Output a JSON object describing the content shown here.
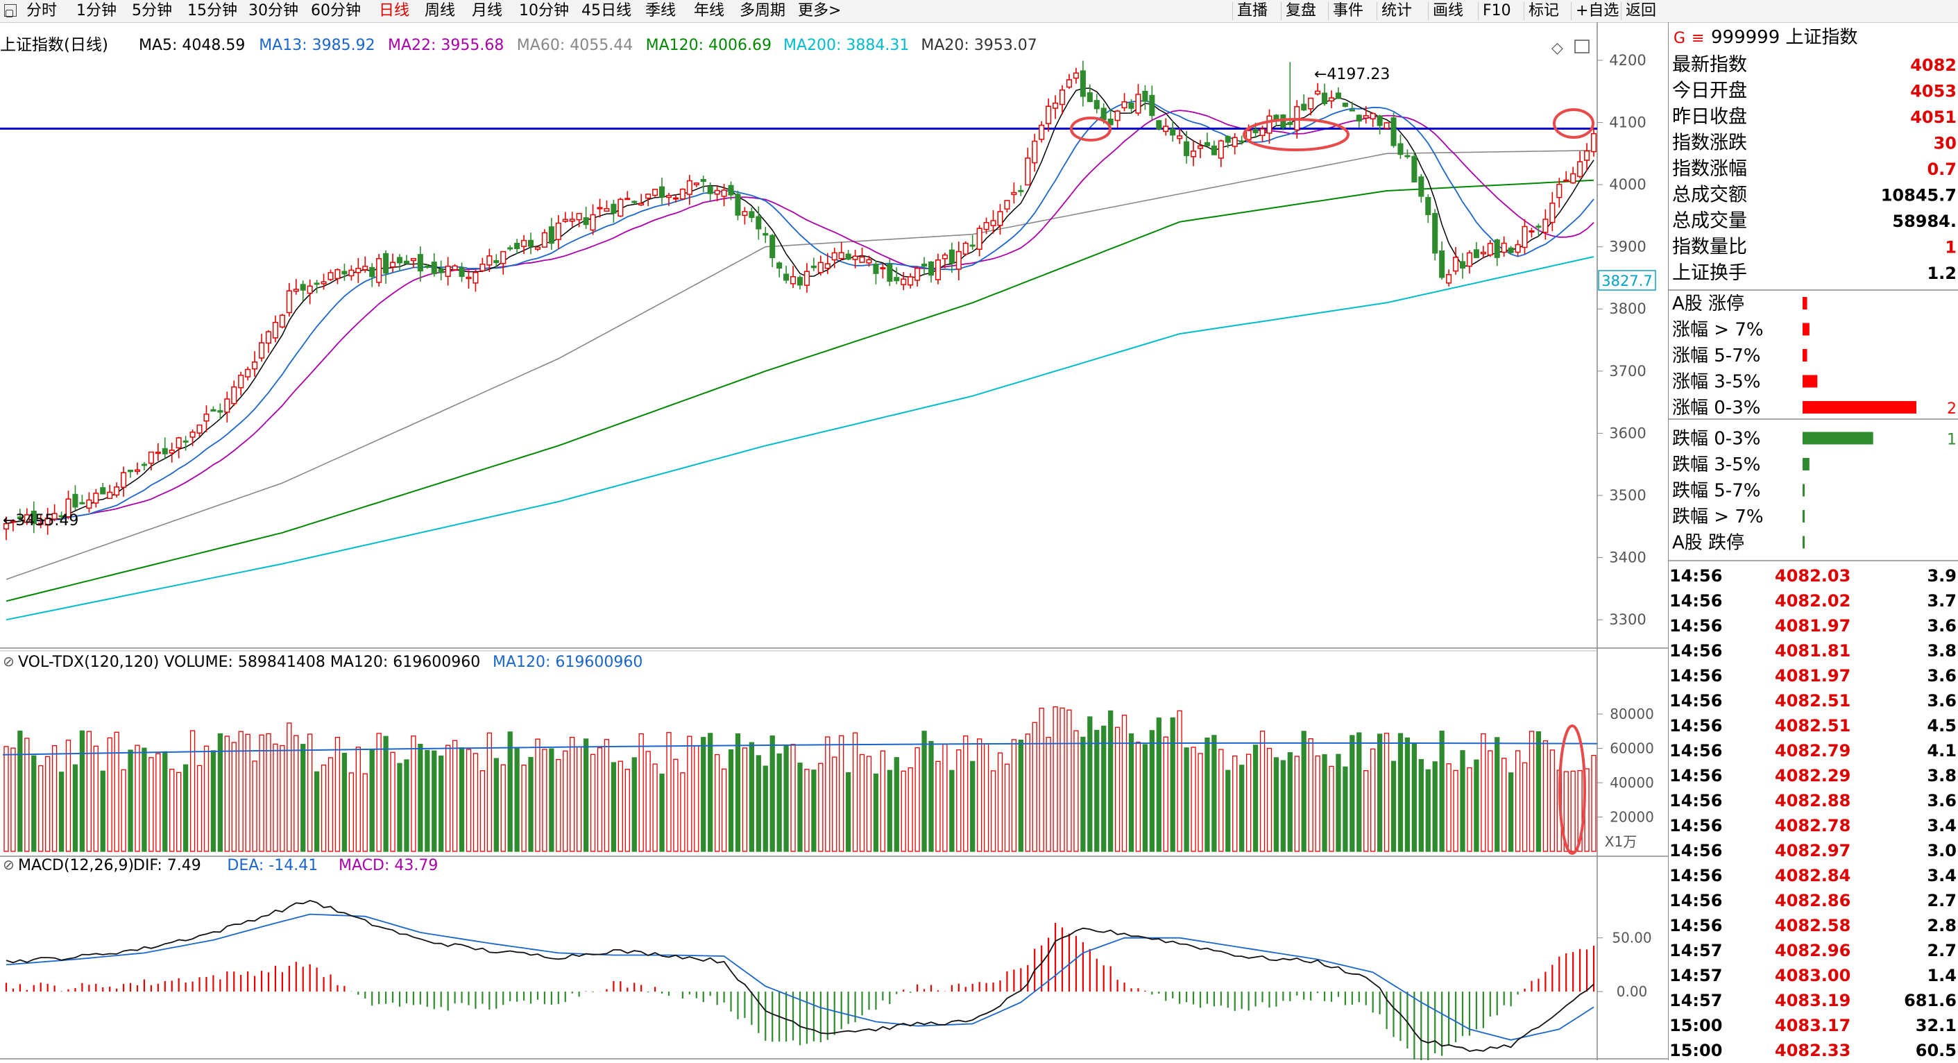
{
  "toolbar": {
    "periods": [
      "分时",
      "1分钟",
      "5分钟",
      "15分钟",
      "30分钟",
      "60分钟",
      "日线",
      "周线",
      "月线",
      "10分钟",
      "45日线",
      "季线",
      "年线",
      "多周期",
      "更多>"
    ],
    "active_period": "日线",
    "right_buttons": [
      "直播",
      "复盘",
      "事件",
      "统计",
      "画线",
      "F10",
      "标记",
      "+自选",
      "返回"
    ]
  },
  "header": {
    "security": "上证指数(日线)",
    "ma_items": [
      {
        "text": "MA5: 4048.59",
        "color": "#000000"
      },
      {
        "text": "MA13: 3985.92",
        "color": "#1a66cc"
      },
      {
        "text": "MA22: 3955.68",
        "color": "#aa00aa"
      },
      {
        "text": "MA60: 4055.44",
        "color": "#888888"
      },
      {
        "text": "MA120: 4006.69",
        "color": "#008800"
      },
      {
        "text": "MA200: 3884.31",
        "color": "#00bbcc"
      },
      {
        "text": "MA20: 3953.07",
        "color": "#333333"
      }
    ],
    "vol_title": "VOL-TDX(120,120) VOLUME: 589841408 MA120: 619600960",
    "vol_ma": "MA120: 619600960",
    "macd_title": "MACD(12,26,9)",
    "macd_items": [
      {
        "text": "DIF: 7.49",
        "color": "#000000"
      },
      {
        "text": "DEA: -14.41",
        "color": "#1a66cc"
      },
      {
        "text": "MACD: 43.79",
        "color": "#aa00aa"
      }
    ]
  },
  "annotations": {
    "high_label": "4197.23",
    "low_label": "3455.49",
    "current_price": "3827.7",
    "vol_unit": "X1万"
  },
  "colors": {
    "up": "#e60000",
    "down": "#2e8b2e",
    "ma5": "#000000",
    "ma13": "#1a66cc",
    "ma22": "#aa00aa",
    "ma60": "#888888",
    "ma120": "#008800",
    "ma200": "#00bbcc",
    "hline": "#0000cc",
    "ellipse": "#e84a4a"
  },
  "quote": {
    "code": "999999",
    "name": "上证指数",
    "fields": [
      {
        "label": "最新指数",
        "value": "4082",
        "color": "#e00000"
      },
      {
        "label": "今日开盘",
        "value": "4053",
        "color": "#e00000"
      },
      {
        "label": "昨日收盘",
        "value": "4051",
        "color": "#e00000"
      },
      {
        "label": "指数涨跌",
        "value": "30",
        "color": "#e00000"
      },
      {
        "label": "指数涨幅",
        "value": "0.7",
        "color": "#e00000"
      },
      {
        "label": "总成交额",
        "value": "10845.7",
        "color": "#000000"
      },
      {
        "label": "总成交量",
        "value": "58984.",
        "color": "#000000"
      },
      {
        "label": "指数量比",
        "value": "1",
        "color": "#e00000"
      },
      {
        "label": "上证换手",
        "value": "1.2",
        "color": "#000000"
      }
    ],
    "dist": [
      {
        "label": "A股 涨停",
        "frac": 0.04,
        "color": "#ff0000",
        "val": ""
      },
      {
        "label": "涨幅 > 7%",
        "frac": 0.06,
        "color": "#ff0000",
        "val": ""
      },
      {
        "label": "涨幅 5-7%",
        "frac": 0.04,
        "color": "#ff0000",
        "val": ""
      },
      {
        "label": "涨幅 3-5%",
        "frac": 0.13,
        "color": "#ff0000",
        "val": ""
      },
      {
        "label": "涨幅 0-3%",
        "frac": 1.0,
        "color": "#ff0000",
        "val": "2"
      },
      {
        "label": "跌幅 0-3%",
        "frac": 0.62,
        "color": "#2e8b2e",
        "val": "1"
      },
      {
        "label": "跌幅 3-5%",
        "frac": 0.06,
        "color": "#2e8b2e",
        "val": ""
      },
      {
        "label": "跌幅 5-7%",
        "frac": 0.015,
        "color": "#2e8b2e",
        "val": ""
      },
      {
        "label": "跌幅 > 7%",
        "frac": 0.015,
        "color": "#2e8b2e",
        "val": ""
      },
      {
        "label": "A股 跌停",
        "frac": 0.015,
        "color": "#2e8b2e",
        "val": ""
      }
    ],
    "ticks": [
      [
        "14:56",
        "4082.03",
        "3.9"
      ],
      [
        "14:56",
        "4082.02",
        "3.7"
      ],
      [
        "14:56",
        "4081.97",
        "3.6"
      ],
      [
        "14:56",
        "4081.81",
        "3.8"
      ],
      [
        "14:56",
        "4081.97",
        "3.6"
      ],
      [
        "14:56",
        "4082.51",
        "3.6"
      ],
      [
        "14:56",
        "4082.51",
        "4.5"
      ],
      [
        "14:56",
        "4082.79",
        "4.1"
      ],
      [
        "14:56",
        "4082.29",
        "3.8"
      ],
      [
        "14:56",
        "4082.88",
        "3.6"
      ],
      [
        "14:56",
        "4082.78",
        "3.4"
      ],
      [
        "14:56",
        "4082.97",
        "3.0"
      ],
      [
        "14:56",
        "4082.84",
        "3.4"
      ],
      [
        "14:56",
        "4082.86",
        "2.7"
      ],
      [
        "14:56",
        "4082.58",
        "2.8"
      ],
      [
        "14:57",
        "4082.96",
        "2.7"
      ],
      [
        "14:57",
        "4083.00",
        "1.4"
      ],
      [
        "14:57",
        "4083.19",
        "681.6"
      ],
      [
        "15:00",
        "4083.17",
        "32.1"
      ],
      [
        "15:00",
        "4082.33",
        "60.5"
      ]
    ]
  },
  "chart_data": [
    {
      "type": "candlestick",
      "title": "上证指数(日线)",
      "ylim": [
        3250,
        4230
      ],
      "yticks": [
        3300,
        3400,
        3500,
        3600,
        3700,
        3800,
        3900,
        4000,
        4100,
        4200
      ],
      "reference_line": 4090,
      "keypoints": [
        [
          0,
          3450
        ],
        [
          12,
          3490
        ],
        [
          22,
          3565
        ],
        [
          32,
          3650
        ],
        [
          42,
          3840
        ],
        [
          52,
          3865
        ],
        [
          58,
          3870
        ],
        [
          66,
          3860
        ],
        [
          76,
          3900
        ],
        [
          87,
          3965
        ],
        [
          93,
          3985
        ],
        [
          98,
          3995
        ],
        [
          104,
          3990
        ],
        [
          110,
          3905
        ],
        [
          114,
          3840
        ],
        [
          122,
          3895
        ],
        [
          130,
          3845
        ],
        [
          138,
          3885
        ],
        [
          147,
          4000
        ],
        [
          152,
          4140
        ],
        [
          155,
          4165
        ],
        [
          160,
          4105
        ],
        [
          164,
          4135
        ],
        [
          168,
          4085
        ],
        [
          172,
          4045
        ],
        [
          177,
          4075
        ],
        [
          182,
          4095
        ],
        [
          186,
          4110
        ],
        [
          190,
          4150
        ],
        [
          194,
          4125
        ],
        [
          199,
          4105
        ],
        [
          204,
          4015
        ],
        [
          208,
          3860
        ],
        [
          212,
          3880
        ],
        [
          218,
          3905
        ],
        [
          222,
          3945
        ],
        [
          226,
          4000
        ],
        [
          229,
          4052
        ],
        [
          230,
          4082
        ]
      ],
      "ma_keypoints": {
        "MA60": [
          [
            0,
            3365
          ],
          [
            40,
            3520
          ],
          [
            80,
            3720
          ],
          [
            110,
            3900
          ],
          [
            140,
            3920
          ],
          [
            170,
            3985
          ],
          [
            200,
            4050
          ],
          [
            230,
            4055
          ]
        ],
        "MA120": [
          [
            0,
            3330
          ],
          [
            40,
            3440
          ],
          [
            80,
            3580
          ],
          [
            110,
            3700
          ],
          [
            140,
            3810
          ],
          [
            170,
            3940
          ],
          [
            200,
            3990
          ],
          [
            230,
            4007
          ]
        ],
        "MA200": [
          [
            0,
            3300
          ],
          [
            40,
            3390
          ],
          [
            80,
            3490
          ],
          [
            110,
            3580
          ],
          [
            140,
            3660
          ],
          [
            170,
            3760
          ],
          [
            200,
            3810
          ],
          [
            230,
            3884
          ]
        ]
      },
      "series_legend": [
        "MA5",
        "MA13",
        "MA22",
        "MA60",
        "MA120",
        "MA200",
        "MA20"
      ]
    },
    {
      "type": "bar",
      "title": "VOL-TDX(120,120)",
      "ylim": [
        0,
        95000
      ],
      "yticks": [
        20000,
        40000,
        60000,
        80000
      ],
      "unit": "X1万",
      "ma120": 61960
    },
    {
      "type": "bar",
      "title": "MACD(12,26,9)",
      "ylim": [
        -60,
        95
      ],
      "yticks": [
        0,
        50
      ],
      "dif_keypoints": [
        [
          0,
          28
        ],
        [
          10,
          32
        ],
        [
          20,
          40
        ],
        [
          30,
          55
        ],
        [
          38,
          72
        ],
        [
          44,
          85
        ],
        [
          52,
          65
        ],
        [
          60,
          48
        ],
        [
          70,
          38
        ],
        [
          80,
          32
        ],
        [
          88,
          38
        ],
        [
          96,
          34
        ],
        [
          104,
          28
        ],
        [
          110,
          -18
        ],
        [
          118,
          -38
        ],
        [
          126,
          -35
        ],
        [
          132,
          -30
        ],
        [
          140,
          -28
        ],
        [
          147,
          0
        ],
        [
          152,
          45
        ],
        [
          156,
          58
        ],
        [
          162,
          54
        ],
        [
          170,
          45
        ],
        [
          180,
          32
        ],
        [
          190,
          28
        ],
        [
          198,
          10
        ],
        [
          205,
          -45
        ],
        [
          212,
          -55
        ],
        [
          218,
          -50
        ],
        [
          225,
          -20
        ],
        [
          230,
          7
        ]
      ],
      "dea_keypoints": [
        [
          0,
          25
        ],
        [
          10,
          30
        ],
        [
          20,
          36
        ],
        [
          30,
          48
        ],
        [
          38,
          62
        ],
        [
          44,
          72
        ],
        [
          52,
          70
        ],
        [
          60,
          55
        ],
        [
          70,
          45
        ],
        [
          80,
          36
        ],
        [
          88,
          34
        ],
        [
          96,
          34
        ],
        [
          104,
          33
        ],
        [
          110,
          5
        ],
        [
          118,
          -15
        ],
        [
          126,
          -28
        ],
        [
          132,
          -32
        ],
        [
          140,
          -30
        ],
        [
          147,
          -10
        ],
        [
          152,
          15
        ],
        [
          156,
          36
        ],
        [
          162,
          50
        ],
        [
          170,
          50
        ],
        [
          180,
          40
        ],
        [
          190,
          30
        ],
        [
          198,
          18
        ],
        [
          205,
          -10
        ],
        [
          212,
          -35
        ],
        [
          218,
          -45
        ],
        [
          225,
          -35
        ],
        [
          230,
          -14.41
        ]
      ]
    }
  ]
}
